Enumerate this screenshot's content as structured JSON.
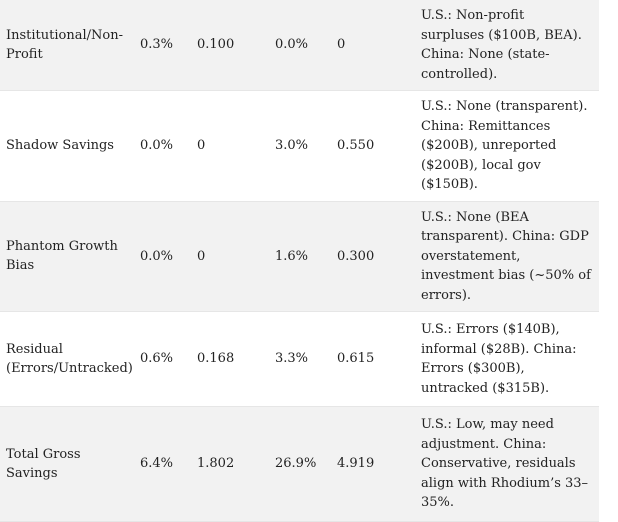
{
  "rows": [
    {
      "category": "Institutional/Non-Profit",
      "us_pct": "0.3%",
      "us_value": "0.100",
      "china_pct": "0.0%",
      "china_value": "0",
      "notes": "U.S.: Non-profit surpluses ($100B, BEA). China: None (state-controlled)."
    },
    {
      "category": "Shadow Savings",
      "us_pct": "0.0%",
      "us_value": "0",
      "china_pct": "3.0%",
      "china_value": "0.550",
      "notes": "U.S.: None (transparent). China: Remittances ($200B), unreported ($200B), local gov ($150B)."
    },
    {
      "category": "Phantom Growth Bias",
      "us_pct": "0.0%",
      "us_value": "0",
      "china_pct": "1.6%",
      "china_value": "0.300",
      "notes": "U.S.: None (BEA transparent). China: GDP overstatement, investment bias (~50% of errors)."
    },
    {
      "category": "Residual (Errors/Untracked)",
      "us_pct": "0.6%",
      "us_value": "0.168",
      "china_pct": "3.3%",
      "china_value": "0.615",
      "notes": "U.S.: Errors ($140B), informal ($28B). China: Errors ($300B), untracked ($315B)."
    },
    {
      "category": "Total Gross Savings",
      "us_pct": "6.4%",
      "us_value": "1.802",
      "china_pct": "26.9%",
      "china_value": "4.919",
      "notes": "U.S.: Low, may need adjustment. China: Conservative, residuals align with Rhodium’s 33–35%."
    }
  ]
}
